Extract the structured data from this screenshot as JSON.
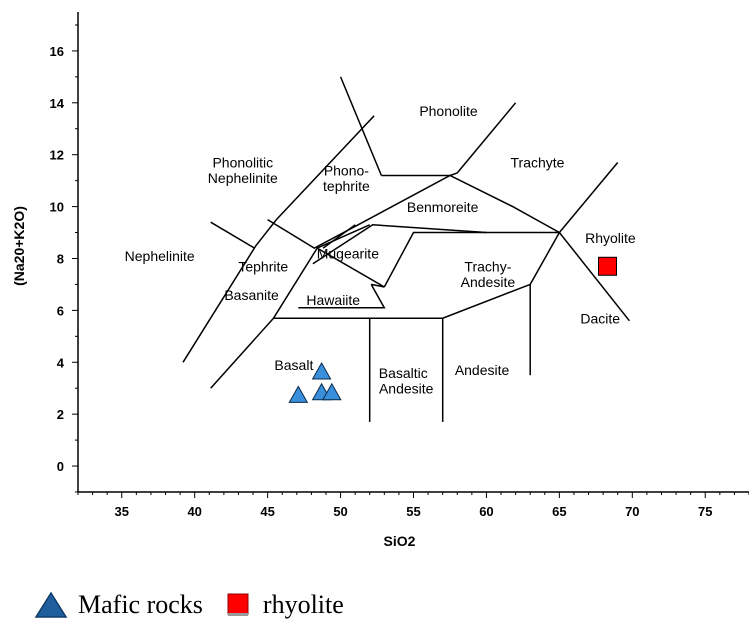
{
  "chart_data": {
    "type": "scatter",
    "xlabel": "SiO2",
    "ylabel": "(Na20+K2O)",
    "xlim": [
      32,
      78
    ],
    "ylim": [
      -1,
      17.5
    ],
    "x_ticks": [
      35,
      40,
      45,
      50,
      55,
      60,
      65,
      70,
      75
    ],
    "y_ticks": [
      0,
      2,
      4,
      6,
      8,
      10,
      12,
      14,
      16
    ],
    "grid": false,
    "legend_position": "bottom",
    "field_boundaries": [
      [
        [
          41,
          3
        ],
        [
          45,
          5
        ],
        [
          52,
          5
        ],
        [
          52,
          1.7
        ]
      ],
      [
        [
          45,
          5
        ],
        [
          45,
          9.4
        ]
      ],
      [
        [
          52,
          5
        ],
        [
          57,
          5.9
        ],
        [
          63,
          7
        ],
        [
          69,
          8
        ],
        [
          69.9,
          13
        ]
      ],
      [
        [
          57,
          5.9
        ],
        [
          57,
          1.7
        ]
      ],
      [
        [
          63,
          7
        ],
        [
          63,
          3.5
        ]
      ],
      [
        [
          48.4,
          11.5
        ],
        [
          52.5,
          14
        ],
        [
          57.6,
          11.7
        ],
        [
          60,
          13.5
        ]
      ],
      [
        [
          52,
          5
        ],
        [
          49.4,
          7.3
        ],
        [
          45,
          9.4
        ]
      ],
      [
        [
          49.4,
          7.3
        ],
        [
          53,
          9.3
        ],
        [
          57.6,
          11.7
        ]
      ],
      [
        [
          53,
          9.3
        ],
        [
          57,
          5.9
        ]
      ],
      [
        [
          41,
          7
        ],
        [
          45,
          9.4
        ],
        [
          48.4,
          11.5
        ]
      ]
    ],
    "tas_lines": [
      [
        [
          39.2,
          4.0
        ],
        [
          44.2,
          8.5
        ],
        [
          45.6,
          9.5
        ],
        [
          52.3,
          13.5
        ]
      ],
      [
        [
          41.1,
          3.0
        ],
        [
          45.4,
          5.7
        ],
        [
          52.1,
          5.7
        ],
        [
          57.0,
          5.7
        ],
        [
          63.0,
          7.0
        ],
        [
          65.0,
          9.0
        ]
      ],
      [
        [
          48.1,
          7.8
        ],
        [
          52.2,
          9.3
        ],
        [
          60.0,
          9.0
        ],
        [
          65.0,
          9.0
        ],
        [
          69.8,
          5.6
        ]
      ],
      [
        [
          47.1,
          6.1
        ],
        [
          53.0,
          6.1
        ],
        [
          52.1,
          7.0
        ],
        [
          53.0,
          6.1
        ]
      ],
      [
        [
          45.0,
          9.5
        ],
        [
          48.2,
          8.4
        ],
        [
          51.2,
          9.3
        ],
        [
          57.5,
          11.2
        ],
        [
          61.8,
          10.0
        ],
        [
          65.0,
          9.0
        ]
      ],
      [
        [
          41.1,
          9.4
        ],
        [
          44.1,
          8.4
        ]
      ],
      [
        [
          45.4,
          5.7
        ],
        [
          48.4,
          8.4
        ],
        [
          52.0,
          9.3
        ]
      ],
      [
        [
          48.4,
          8.4
        ],
        [
          53.0,
          6.9
        ],
        [
          52.1,
          7.0
        ]
      ],
      [
        [
          52.0,
          1.7
        ],
        [
          52.0,
          5.7
        ]
      ],
      [
        [
          57.0,
          1.7
        ],
        [
          57.0,
          5.7
        ]
      ],
      [
        [
          63.0,
          3.5
        ],
        [
          63.0,
          7.0
        ]
      ],
      [
        [
          53.0,
          6.9
        ],
        [
          55.0,
          9.0
        ],
        [
          60.0,
          9.0
        ]
      ],
      [
        [
          51.0,
          9.3
        ],
        [
          48.8,
          8.4
        ]
      ],
      [
        [
          57.5,
          11.2
        ],
        [
          58.0,
          11.3
        ],
        [
          62.0,
          14.0
        ]
      ],
      [
        [
          52.8,
          11.2
        ],
        [
          57.5,
          11.2
        ]
      ],
      [
        [
          50.0,
          15.0
        ],
        [
          52.8,
          11.2
        ]
      ],
      [
        [
          65.0,
          9.0
        ],
        [
          69.0,
          11.7
        ]
      ]
    ],
    "field_labels": [
      {
        "text": "Phonolite",
        "x": 57.4,
        "y": 13.5
      },
      {
        "text": "Phonolitic",
        "x": 43.3,
        "y": 11.5
      },
      {
        "text": "Nephelinite",
        "x": 43.3,
        "y": 10.9
      },
      {
        "text": "Phono-",
        "x": 50.4,
        "y": 11.2
      },
      {
        "text": "tephrite",
        "x": 50.4,
        "y": 10.6
      },
      {
        "text": "Trachyte",
        "x": 63.5,
        "y": 11.5
      },
      {
        "text": "Benmoreite",
        "x": 57.0,
        "y": 9.8
      },
      {
        "text": "Rhyolite",
        "x": 68.5,
        "y": 8.6
      },
      {
        "text": "Nephelinite",
        "x": 37.6,
        "y": 7.9
      },
      {
        "text": "Mugearite",
        "x": 50.5,
        "y": 8.0
      },
      {
        "text": "Tephrite",
        "x": 44.7,
        "y": 7.5
      },
      {
        "text": "Trachy-",
        "x": 60.1,
        "y": 7.5
      },
      {
        "text": "Andesite",
        "x": 60.1,
        "y": 6.9
      },
      {
        "text": "Basanite",
        "x": 43.9,
        "y": 6.4
      },
      {
        "text": "Hawaiite",
        "x": 49.5,
        "y": 6.2
      },
      {
        "text": "Dacite",
        "x": 67.8,
        "y": 5.5
      },
      {
        "text": "Basalt",
        "x": 46.8,
        "y": 3.7
      },
      {
        "text": "Basaltic",
        "x": 54.3,
        "y": 3.4
      },
      {
        "text": "Andesite",
        "x": 54.5,
        "y": 2.8
      },
      {
        "text": "Andesite",
        "x": 59.7,
        "y": 3.5
      }
    ],
    "series": [
      {
        "name": "Mafic rocks",
        "marker": "triangle",
        "color": "#3a8fdc",
        "points": [
          [
            48.7,
            3.6
          ],
          [
            47.1,
            2.7
          ],
          [
            48.7,
            2.8
          ],
          [
            49.4,
            2.8
          ]
        ]
      },
      {
        "name": "rhyolite",
        "marker": "square",
        "color": "#ff0000",
        "points": [
          [
            68.3,
            7.7
          ]
        ]
      }
    ]
  },
  "legend": {
    "items": [
      {
        "label": "Mafic rocks",
        "marker": "triangle",
        "color": "#3a8fdc"
      },
      {
        "label": "rhyolite",
        "marker": "square",
        "color": "#ff0000"
      }
    ]
  }
}
